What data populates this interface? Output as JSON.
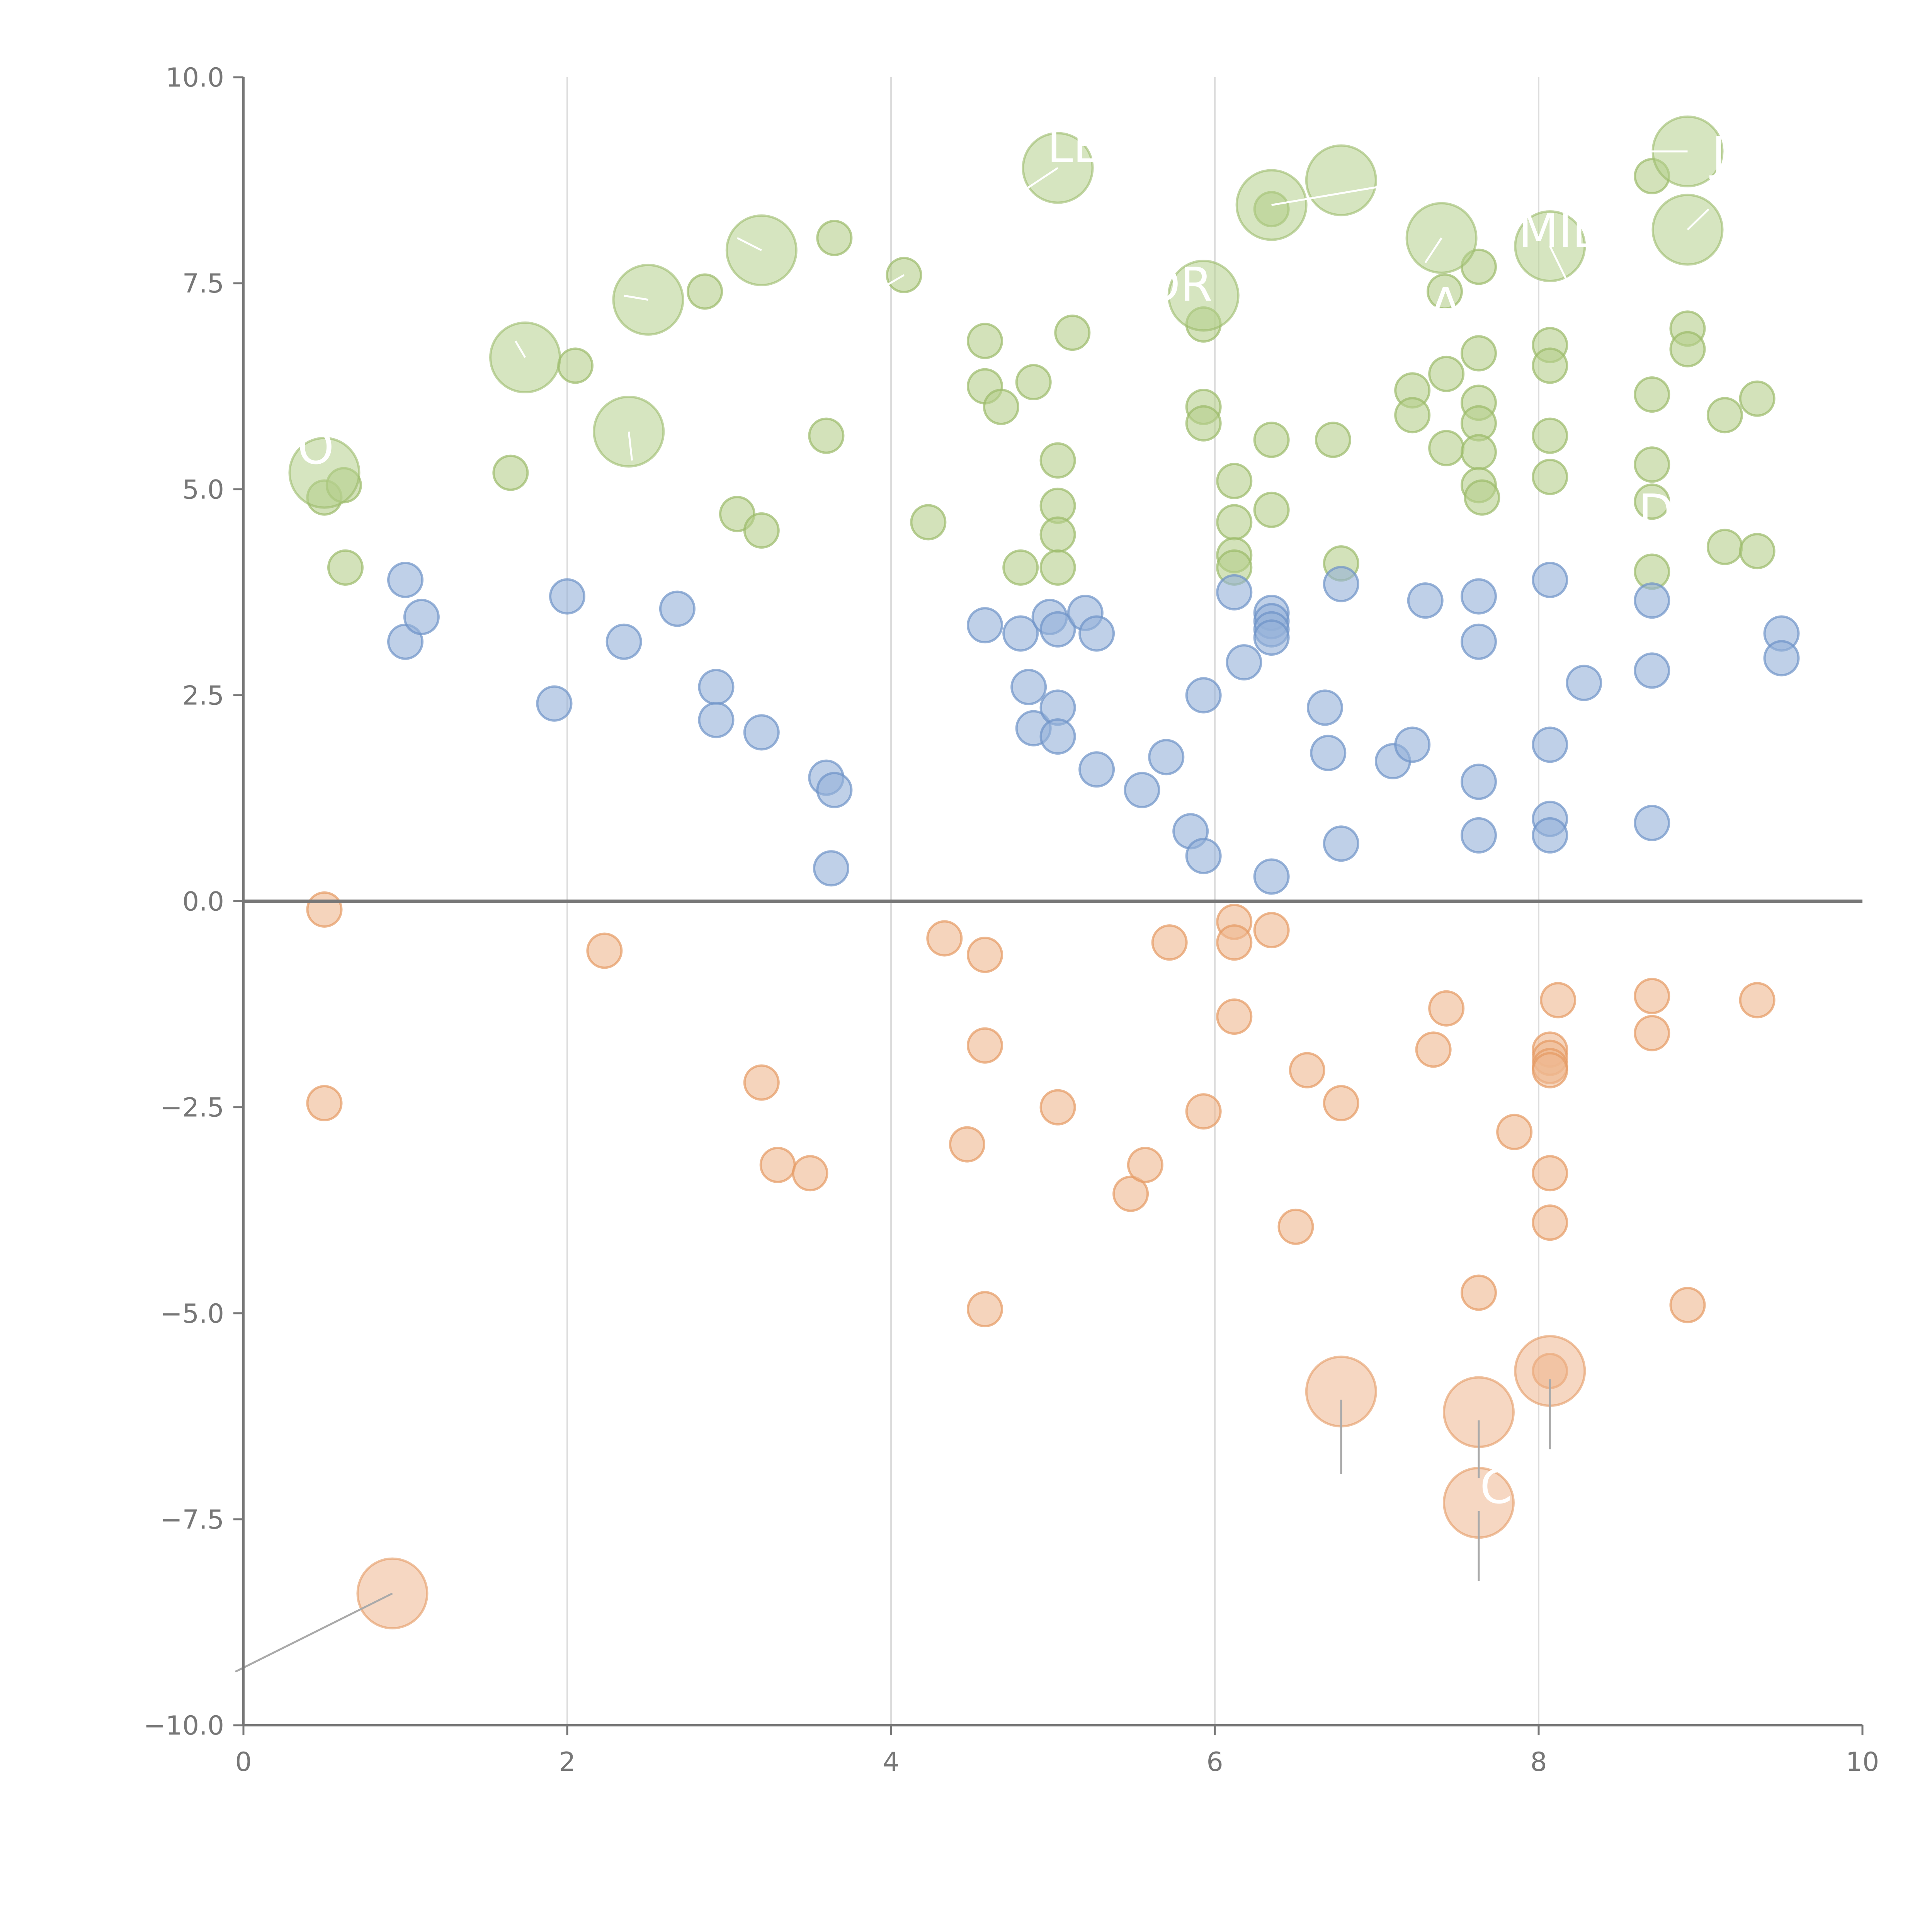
{
  "chart_data": {
    "type": "scatter",
    "title": "",
    "xlabel": "",
    "ylabel": "",
    "xlim": [
      0,
      10
    ],
    "ylim": [
      -10,
      10
    ],
    "x_ticks": [
      0,
      2,
      4,
      6,
      8,
      10
    ],
    "y_ticks": [
      10.0,
      7.5,
      5.0,
      2.5,
      0.0,
      -2.5,
      -5.0,
      -7.5,
      -10.0
    ],
    "x_tick_labels": [
      "0",
      "2",
      "4",
      "6",
      "8",
      "10"
    ],
    "y_tick_labels": [
      "10.0",
      "7.5",
      "5.0",
      "2.5",
      "0.0",
      "−2.5",
      "−5.0",
      "−7.5",
      "−10.0"
    ],
    "vertical_grid_at": [
      2,
      4,
      6,
      8
    ],
    "zero_line": 0,
    "legend": "none",
    "series": [
      {
        "name": "green",
        "color": "#b5cf8c",
        "stroke": "#9bbb6a",
        "small": [
          [
            0.5,
            4.9
          ],
          [
            0.63,
            4.05
          ],
          [
            0.62,
            5.05
          ],
          [
            1.65,
            5.2
          ],
          [
            2.05,
            6.5
          ],
          [
            2.85,
            7.4
          ],
          [
            3.05,
            4.7
          ],
          [
            3.2,
            4.5
          ],
          [
            3.6,
            5.65
          ],
          [
            3.65,
            8.05
          ],
          [
            4.08,
            7.6
          ],
          [
            4.23,
            4.6
          ],
          [
            4.58,
            6.25
          ],
          [
            4.58,
            6.8
          ],
          [
            4.68,
            6.0
          ],
          [
            4.8,
            4.05
          ],
          [
            4.88,
            6.3
          ],
          [
            5.03,
            4.8
          ],
          [
            5.03,
            5.35
          ],
          [
            5.03,
            4.45
          ],
          [
            5.03,
            4.05
          ],
          [
            5.12,
            6.9
          ],
          [
            5.93,
            6.0
          ],
          [
            5.93,
            5.8
          ],
          [
            5.93,
            7.0
          ],
          [
            6.12,
            5.1
          ],
          [
            6.12,
            4.6
          ],
          [
            6.12,
            4.2
          ],
          [
            6.12,
            4.05
          ],
          [
            6.35,
            5.6
          ],
          [
            6.35,
            4.75
          ],
          [
            6.35,
            8.4
          ],
          [
            6.73,
            5.6
          ],
          [
            6.78,
            4.1
          ],
          [
            7.22,
            6.2
          ],
          [
            7.22,
            5.9
          ],
          [
            7.42,
            7.4
          ],
          [
            7.43,
            6.4
          ],
          [
            7.43,
            5.5
          ],
          [
            7.63,
            7.7
          ],
          [
            7.63,
            6.65
          ],
          [
            7.63,
            6.05
          ],
          [
            7.63,
            5.8
          ],
          [
            7.63,
            5.45
          ],
          [
            7.63,
            5.05
          ],
          [
            7.65,
            4.9
          ],
          [
            8.07,
            6.75
          ],
          [
            8.07,
            6.5
          ],
          [
            8.07,
            5.65
          ],
          [
            8.07,
            5.15
          ],
          [
            8.7,
            8.8
          ],
          [
            8.7,
            6.15
          ],
          [
            8.7,
            5.3
          ],
          [
            8.7,
            4.85
          ],
          [
            8.7,
            4.0
          ],
          [
            8.92,
            6.95
          ],
          [
            8.92,
            6.7
          ],
          [
            9.15,
            5.9
          ],
          [
            9.15,
            4.3
          ],
          [
            9.35,
            6.1
          ],
          [
            9.35,
            4.25
          ]
        ],
        "large": [
          [
            0.5,
            5.2
          ],
          [
            1.74,
            6.6
          ],
          [
            2.38,
            5.7
          ],
          [
            2.5,
            7.3
          ],
          [
            3.2,
            7.9
          ],
          [
            5.03,
            8.9
          ],
          [
            5.93,
            7.35
          ],
          [
            6.35,
            8.45
          ],
          [
            6.78,
            8.75
          ],
          [
            7.4,
            8.05
          ],
          [
            8.07,
            7.95
          ],
          [
            8.92,
            9.1
          ],
          [
            8.92,
            8.15
          ]
        ]
      },
      {
        "name": "blue",
        "color": "#95b1d9",
        "stroke": "#6e93c8",
        "small": [
          [
            1.0,
            3.9
          ],
          [
            1.0,
            3.15
          ],
          [
            1.1,
            3.45
          ],
          [
            1.92,
            2.4
          ],
          [
            2.0,
            3.7
          ],
          [
            2.35,
            3.15
          ],
          [
            2.68,
            3.55
          ],
          [
            2.92,
            2.6
          ],
          [
            2.92,
            2.2
          ],
          [
            3.2,
            2.05
          ],
          [
            3.6,
            1.5
          ],
          [
            3.65,
            1.35
          ],
          [
            3.63,
            0.4
          ],
          [
            4.58,
            3.35
          ],
          [
            4.8,
            3.25
          ],
          [
            4.85,
            2.6
          ],
          [
            4.88,
            2.1
          ],
          [
            4.98,
            3.45
          ],
          [
            5.03,
            3.3
          ],
          [
            5.03,
            2.35
          ],
          [
            5.03,
            2.0
          ],
          [
            5.2,
            3.5
          ],
          [
            5.27,
            3.25
          ],
          [
            5.27,
            1.6
          ],
          [
            5.55,
            1.35
          ],
          [
            5.7,
            1.75
          ],
          [
            5.85,
            0.85
          ],
          [
            5.93,
            2.5
          ],
          [
            5.93,
            0.55
          ],
          [
            6.12,
            3.75
          ],
          [
            6.18,
            2.9
          ],
          [
            6.35,
            3.5
          ],
          [
            6.35,
            3.4
          ],
          [
            6.35,
            3.3
          ],
          [
            6.35,
            3.2
          ],
          [
            6.35,
            0.3
          ],
          [
            6.68,
            2.35
          ],
          [
            6.7,
            1.8
          ],
          [
            6.78,
            3.85
          ],
          [
            6.78,
            0.7
          ],
          [
            7.1,
            1.7
          ],
          [
            7.22,
            1.9
          ],
          [
            7.3,
            3.65
          ],
          [
            7.63,
            3.7
          ],
          [
            7.63,
            3.15
          ],
          [
            7.63,
            1.45
          ],
          [
            7.63,
            0.8
          ],
          [
            8.07,
            3.9
          ],
          [
            8.07,
            1.9
          ],
          [
            8.07,
            1.0
          ],
          [
            8.07,
            0.8
          ],
          [
            8.28,
            2.65
          ],
          [
            8.7,
            3.65
          ],
          [
            8.7,
            2.8
          ],
          [
            8.7,
            0.95
          ],
          [
            9.5,
            3.25
          ],
          [
            9.5,
            2.95
          ]
        ],
        "large": []
      },
      {
        "name": "orange",
        "color": "#eeb78f",
        "stroke": "#e59a63",
        "small": [
          [
            0.5,
            -0.1
          ],
          [
            0.5,
            -2.45
          ],
          [
            2.23,
            -0.6
          ],
          [
            3.2,
            -2.2
          ],
          [
            3.3,
            -3.2
          ],
          [
            3.5,
            -3.3
          ],
          [
            4.33,
            -0.45
          ],
          [
            4.47,
            -2.95
          ],
          [
            4.58,
            -0.65
          ],
          [
            4.58,
            -1.75
          ],
          [
            4.58,
            -4.95
          ],
          [
            5.03,
            -2.5
          ],
          [
            5.48,
            -3.55
          ],
          [
            5.57,
            -3.2
          ],
          [
            5.72,
            -0.5
          ],
          [
            5.93,
            -2.55
          ],
          [
            6.12,
            -0.25
          ],
          [
            6.12,
            -0.5
          ],
          [
            6.12,
            -1.4
          ],
          [
            6.35,
            -0.35
          ],
          [
            6.5,
            -3.95
          ],
          [
            6.57,
            -2.05
          ],
          [
            6.78,
            -2.45
          ],
          [
            7.35,
            -1.8
          ],
          [
            7.43,
            -1.3
          ],
          [
            7.63,
            -4.75
          ],
          [
            7.85,
            -2.8
          ],
          [
            8.07,
            -1.8
          ],
          [
            8.07,
            -1.9
          ],
          [
            8.07,
            -2.0
          ],
          [
            8.07,
            -2.05
          ],
          [
            8.07,
            -3.3
          ],
          [
            8.07,
            -3.9
          ],
          [
            8.07,
            -5.7
          ],
          [
            8.12,
            -1.2
          ],
          [
            8.7,
            -1.15
          ],
          [
            8.7,
            -1.6
          ],
          [
            8.92,
            -4.9
          ],
          [
            9.35,
            -1.2
          ]
        ],
        "large": [
          [
            0.92,
            -8.4
          ],
          [
            6.78,
            -5.95
          ],
          [
            7.63,
            -6.2
          ],
          [
            7.63,
            -7.3
          ],
          [
            8.07,
            -5.7
          ]
        ]
      }
    ],
    "annotations": [
      "LE",
      "OR",
      "MIDA",
      "J",
      "D",
      "O",
      "A",
      "C"
    ]
  }
}
